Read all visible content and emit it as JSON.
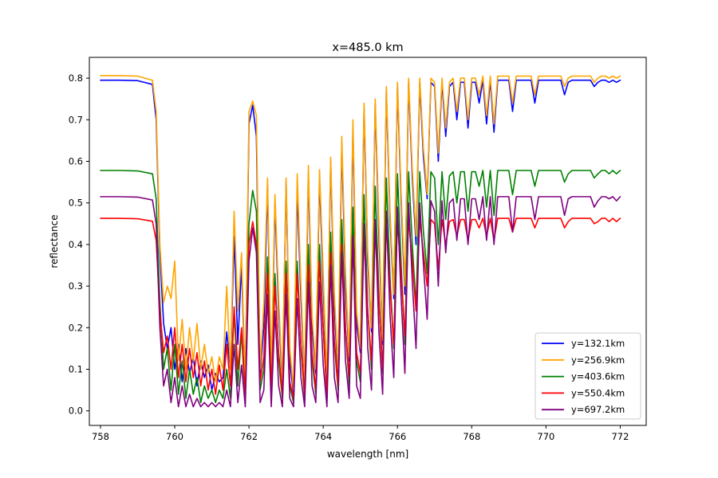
{
  "chart_data": {
    "type": "line",
    "title": "x=485.0 km",
    "xlabel": "wavelength [nm]",
    "ylabel": "reflectance",
    "xlim": [
      757.7,
      772.7
    ],
    "ylim": [
      -0.035,
      0.85
    ],
    "xticks": [
      758,
      760,
      762,
      764,
      766,
      768,
      770,
      772
    ],
    "yticks": [
      0.0,
      0.1,
      0.2,
      0.3,
      0.4,
      0.5,
      0.6,
      0.7,
      0.8
    ],
    "xtick_labels": [
      "758",
      "760",
      "762",
      "764",
      "766",
      "768",
      "770",
      "772"
    ],
    "ytick_labels": [
      "0.0",
      "0.1",
      "0.2",
      "0.3",
      "0.4",
      "0.5",
      "0.6",
      "0.7",
      "0.8"
    ],
    "grid": false,
    "legend_position": "lower-right",
    "x": [
      758.0,
      758.5,
      759.0,
      759.4,
      759.5,
      759.6,
      759.7,
      759.8,
      759.9,
      760.0,
      760.1,
      760.2,
      760.3,
      760.4,
      760.5,
      760.6,
      760.7,
      760.8,
      760.9,
      761.0,
      761.1,
      761.2,
      761.3,
      761.4,
      761.5,
      761.6,
      761.7,
      761.8,
      761.9,
      762.0,
      762.1,
      762.2,
      762.3,
      762.4,
      762.5,
      762.6,
      762.7,
      762.8,
      762.9,
      763.0,
      763.1,
      763.2,
      763.3,
      763.4,
      763.5,
      763.6,
      763.7,
      763.8,
      763.9,
      764.0,
      764.1,
      764.2,
      764.3,
      764.4,
      764.5,
      764.6,
      764.7,
      764.8,
      764.9,
      765.0,
      765.1,
      765.2,
      765.3,
      765.4,
      765.5,
      765.6,
      765.7,
      765.8,
      765.9,
      766.0,
      766.1,
      766.2,
      766.3,
      766.4,
      766.5,
      766.6,
      766.7,
      766.8,
      766.9,
      767.0,
      767.1,
      767.2,
      767.3,
      767.4,
      767.5,
      767.6,
      767.7,
      767.8,
      767.9,
      768.0,
      768.1,
      768.2,
      768.3,
      768.4,
      768.5,
      768.6,
      768.7,
      768.8,
      768.9,
      769.0,
      769.1,
      769.2,
      769.3,
      769.4,
      769.5,
      769.6,
      769.7,
      769.8,
      769.9,
      770.0,
      770.1,
      770.2,
      770.3,
      770.4,
      770.5,
      770.6,
      770.7,
      770.8,
      770.9,
      771.0,
      771.1,
      771.2,
      771.3,
      771.4,
      771.5,
      771.6,
      771.7,
      771.8,
      771.9,
      772.0
    ],
    "series": [
      {
        "name": "y=132.1km",
        "color": "#0000ff",
        "values": [
          0.795,
          0.795,
          0.794,
          0.785,
          0.7,
          0.38,
          0.21,
          0.15,
          0.2,
          0.1,
          0.16,
          0.07,
          0.15,
          0.09,
          0.13,
          0.06,
          0.12,
          0.08,
          0.11,
          0.05,
          0.09,
          0.07,
          0.08,
          0.19,
          0.1,
          0.42,
          0.16,
          0.35,
          0.05,
          0.69,
          0.735,
          0.66,
          0.09,
          0.2,
          0.54,
          0.06,
          0.5,
          0.24,
          0.06,
          0.55,
          0.12,
          0.04,
          0.53,
          0.27,
          0.06,
          0.57,
          0.2,
          0.09,
          0.56,
          0.3,
          0.06,
          0.6,
          0.25,
          0.08,
          0.64,
          0.3,
          0.12,
          0.68,
          0.21,
          0.14,
          0.73,
          0.36,
          0.19,
          0.74,
          0.42,
          0.16,
          0.77,
          0.46,
          0.27,
          0.78,
          0.5,
          0.28,
          0.79,
          0.56,
          0.4,
          0.79,
          0.61,
          0.51,
          0.79,
          0.78,
          0.6,
          0.79,
          0.66,
          0.78,
          0.79,
          0.7,
          0.79,
          0.79,
          0.68,
          0.79,
          0.79,
          0.74,
          0.795,
          0.69,
          0.795,
          0.67,
          0.795,
          0.795,
          0.795,
          0.795,
          0.72,
          0.795,
          0.795,
          0.795,
          0.795,
          0.795,
          0.74,
          0.795,
          0.795,
          0.795,
          0.795,
          0.795,
          0.795,
          0.795,
          0.76,
          0.79,
          0.795,
          0.795,
          0.795,
          0.795,
          0.795,
          0.795,
          0.78,
          0.79,
          0.795,
          0.795,
          0.79,
          0.795,
          0.79,
          0.795
        ]
      },
      {
        "name": "y=256.9km",
        "color": "#ffa500",
        "values": [
          0.806,
          0.806,
          0.805,
          0.795,
          0.72,
          0.4,
          0.26,
          0.3,
          0.27,
          0.36,
          0.12,
          0.22,
          0.1,
          0.2,
          0.12,
          0.21,
          0.1,
          0.16,
          0.09,
          0.13,
          0.07,
          0.13,
          0.1,
          0.3,
          0.1,
          0.48,
          0.24,
          0.38,
          0.06,
          0.72,
          0.745,
          0.71,
          0.1,
          0.26,
          0.56,
          0.08,
          0.52,
          0.27,
          0.07,
          0.56,
          0.15,
          0.05,
          0.57,
          0.3,
          0.07,
          0.59,
          0.23,
          0.1,
          0.58,
          0.33,
          0.07,
          0.61,
          0.28,
          0.1,
          0.66,
          0.33,
          0.13,
          0.7,
          0.24,
          0.15,
          0.74,
          0.38,
          0.2,
          0.75,
          0.45,
          0.17,
          0.78,
          0.48,
          0.28,
          0.79,
          0.52,
          0.3,
          0.8,
          0.58,
          0.42,
          0.8,
          0.63,
          0.52,
          0.8,
          0.79,
          0.62,
          0.8,
          0.68,
          0.79,
          0.8,
          0.72,
          0.8,
          0.8,
          0.7,
          0.8,
          0.8,
          0.76,
          0.805,
          0.71,
          0.805,
          0.69,
          0.805,
          0.805,
          0.805,
          0.805,
          0.74,
          0.805,
          0.805,
          0.805,
          0.805,
          0.805,
          0.76,
          0.805,
          0.805,
          0.805,
          0.805,
          0.805,
          0.805,
          0.805,
          0.78,
          0.8,
          0.805,
          0.805,
          0.805,
          0.805,
          0.805,
          0.805,
          0.79,
          0.8,
          0.805,
          0.805,
          0.8,
          0.805,
          0.8,
          0.805
        ]
      },
      {
        "name": "y=403.6km",
        "color": "#008000",
        "values": [
          0.578,
          0.578,
          0.577,
          0.57,
          0.51,
          0.26,
          0.1,
          0.15,
          0.05,
          0.16,
          0.04,
          0.12,
          0.03,
          0.1,
          0.04,
          0.08,
          0.02,
          0.06,
          0.03,
          0.05,
          0.02,
          0.05,
          0.03,
          0.1,
          0.03,
          0.24,
          0.06,
          0.19,
          0.02,
          0.45,
          0.53,
          0.48,
          0.05,
          0.1,
          0.37,
          0.03,
          0.33,
          0.12,
          0.03,
          0.36,
          0.06,
          0.02,
          0.36,
          0.15,
          0.03,
          0.4,
          0.12,
          0.04,
          0.4,
          0.2,
          0.03,
          0.43,
          0.16,
          0.05,
          0.46,
          0.2,
          0.06,
          0.49,
          0.12,
          0.07,
          0.52,
          0.24,
          0.1,
          0.54,
          0.28,
          0.09,
          0.56,
          0.32,
          0.15,
          0.57,
          0.35,
          0.16,
          0.575,
          0.4,
          0.25,
          0.575,
          0.43,
          0.33,
          0.575,
          0.56,
          0.4,
          0.575,
          0.46,
          0.565,
          0.575,
          0.5,
          0.575,
          0.575,
          0.48,
          0.575,
          0.575,
          0.54,
          0.578,
          0.49,
          0.578,
          0.47,
          0.578,
          0.578,
          0.578,
          0.578,
          0.52,
          0.578,
          0.578,
          0.578,
          0.578,
          0.578,
          0.54,
          0.578,
          0.578,
          0.578,
          0.578,
          0.578,
          0.578,
          0.578,
          0.55,
          0.57,
          0.578,
          0.578,
          0.578,
          0.578,
          0.578,
          0.578,
          0.56,
          0.57,
          0.578,
          0.578,
          0.57,
          0.578,
          0.57,
          0.578
        ]
      },
      {
        "name": "y=550.4km",
        "color": "#ff0000",
        "values": [
          0.463,
          0.463,
          0.462,
          0.456,
          0.41,
          0.24,
          0.14,
          0.18,
          0.1,
          0.2,
          0.08,
          0.16,
          0.07,
          0.15,
          0.08,
          0.14,
          0.06,
          0.12,
          0.05,
          0.1,
          0.04,
          0.11,
          0.05,
          0.16,
          0.06,
          0.25,
          0.1,
          0.2,
          0.04,
          0.4,
          0.455,
          0.4,
          0.07,
          0.13,
          0.33,
          0.05,
          0.3,
          0.14,
          0.04,
          0.33,
          0.07,
          0.03,
          0.33,
          0.16,
          0.04,
          0.35,
          0.14,
          0.05,
          0.36,
          0.2,
          0.04,
          0.38,
          0.17,
          0.06,
          0.4,
          0.2,
          0.08,
          0.42,
          0.14,
          0.09,
          0.43,
          0.24,
          0.12,
          0.44,
          0.27,
          0.1,
          0.45,
          0.3,
          0.16,
          0.455,
          0.33,
          0.18,
          0.46,
          0.36,
          0.24,
          0.46,
          0.38,
          0.3,
          0.46,
          0.45,
          0.34,
          0.46,
          0.4,
          0.455,
          0.46,
          0.42,
          0.46,
          0.46,
          0.41,
          0.46,
          0.46,
          0.44,
          0.463,
          0.42,
          0.463,
          0.41,
          0.463,
          0.463,
          0.463,
          0.463,
          0.43,
          0.463,
          0.463,
          0.463,
          0.463,
          0.463,
          0.44,
          0.463,
          0.463,
          0.463,
          0.463,
          0.463,
          0.463,
          0.463,
          0.44,
          0.455,
          0.463,
          0.463,
          0.463,
          0.463,
          0.463,
          0.463,
          0.45,
          0.455,
          0.463,
          0.463,
          0.455,
          0.463,
          0.455,
          0.463
        ]
      },
      {
        "name": "y=697.2km",
        "color": "#800080",
        "values": [
          0.515,
          0.515,
          0.514,
          0.507,
          0.45,
          0.2,
          0.06,
          0.1,
          0.02,
          0.08,
          0.01,
          0.06,
          0.01,
          0.04,
          0.01,
          0.03,
          0.01,
          0.02,
          0.01,
          0.02,
          0.01,
          0.02,
          0.01,
          0.05,
          0.01,
          0.16,
          0.02,
          0.11,
          0.01,
          0.36,
          0.44,
          0.38,
          0.02,
          0.05,
          0.28,
          0.01,
          0.24,
          0.06,
          0.01,
          0.28,
          0.03,
          0.01,
          0.27,
          0.08,
          0.01,
          0.31,
          0.06,
          0.02,
          0.31,
          0.11,
          0.01,
          0.35,
          0.08,
          0.02,
          0.38,
          0.12,
          0.03,
          0.42,
          0.06,
          0.03,
          0.45,
          0.15,
          0.05,
          0.46,
          0.19,
          0.04,
          0.48,
          0.23,
          0.08,
          0.49,
          0.27,
          0.09,
          0.5,
          0.31,
          0.15,
          0.5,
          0.35,
          0.22,
          0.505,
          0.48,
          0.3,
          0.505,
          0.38,
          0.5,
          0.51,
          0.41,
          0.51,
          0.51,
          0.4,
          0.51,
          0.51,
          0.46,
          0.515,
          0.41,
          0.515,
          0.4,
          0.515,
          0.515,
          0.515,
          0.515,
          0.43,
          0.515,
          0.515,
          0.515,
          0.515,
          0.515,
          0.46,
          0.515,
          0.515,
          0.515,
          0.515,
          0.515,
          0.515,
          0.515,
          0.47,
          0.51,
          0.515,
          0.515,
          0.515,
          0.515,
          0.515,
          0.515,
          0.49,
          0.505,
          0.515,
          0.515,
          0.51,
          0.515,
          0.505,
          0.515
        ]
      }
    ]
  }
}
